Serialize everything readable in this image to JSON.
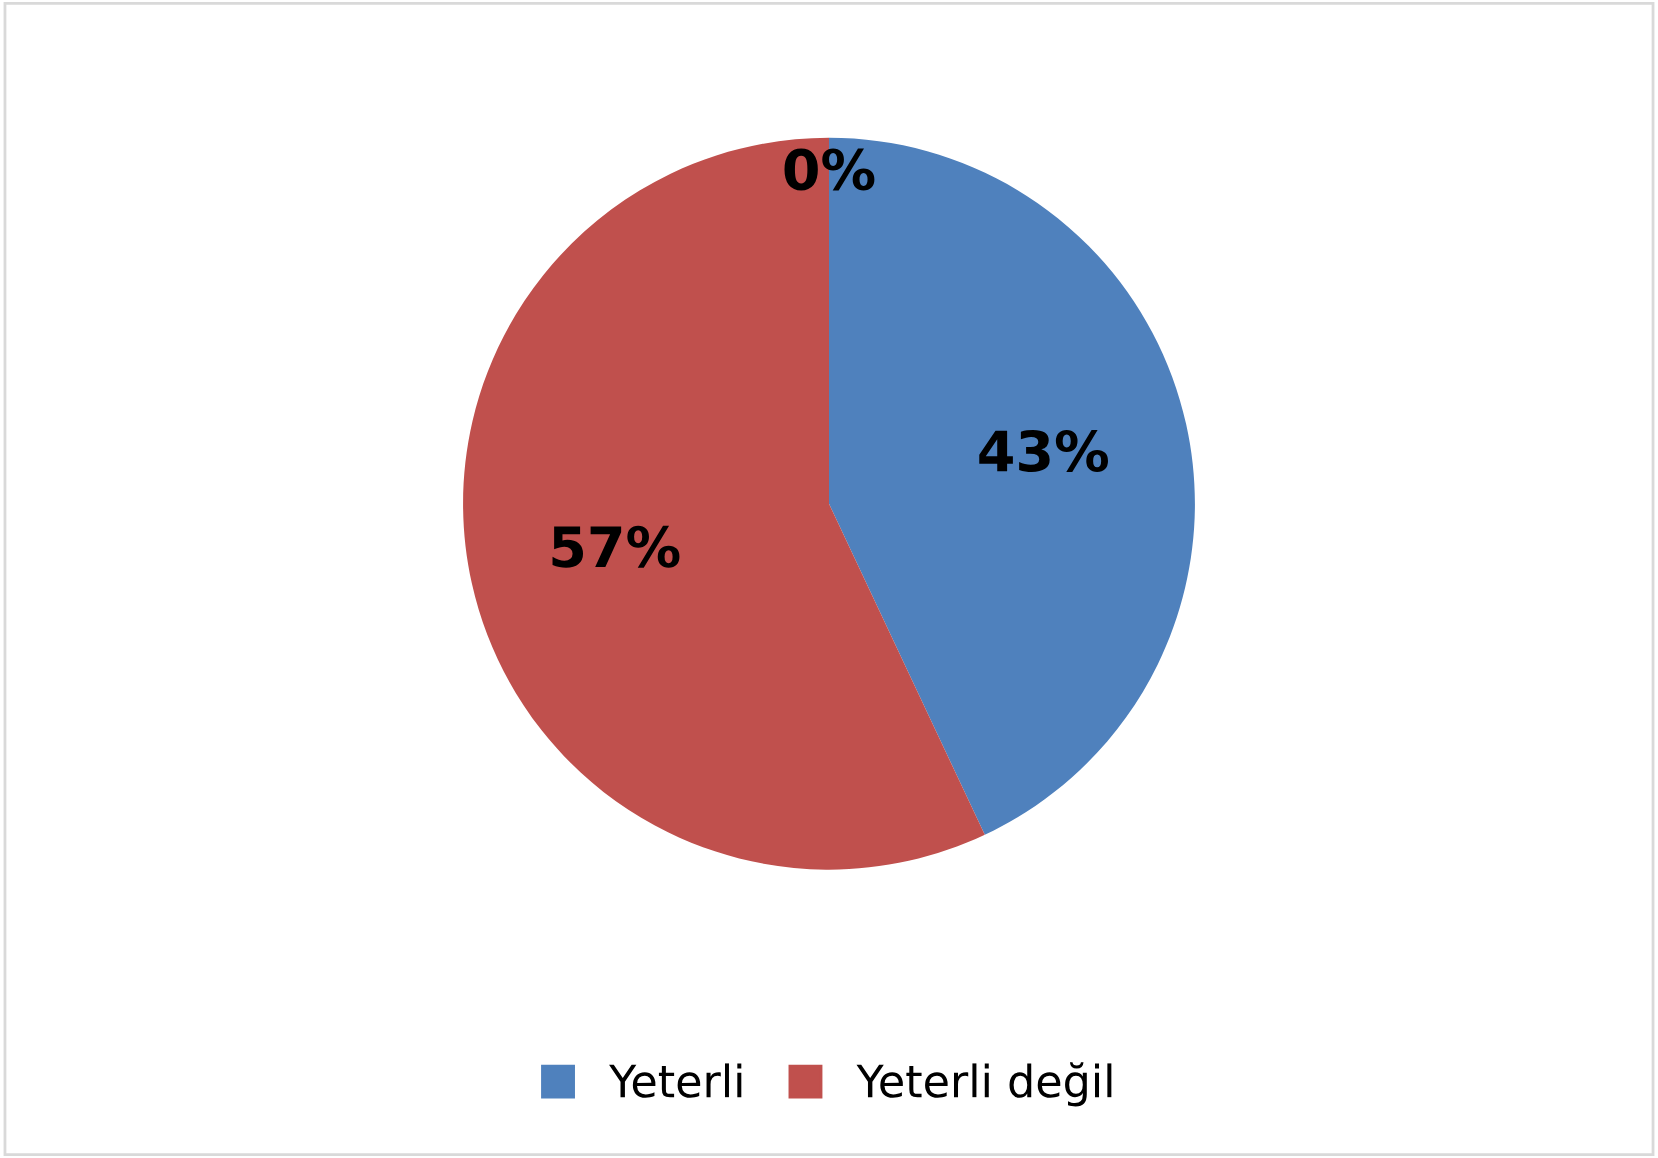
{
  "chart_data": {
    "type": "pie",
    "categories": [
      "Yeterli",
      "Yeterli değil",
      null
    ],
    "values": [
      43,
      57,
      0
    ],
    "colors": [
      "#4f81bd",
      "#c0504d",
      "#9bbb59"
    ],
    "value_labels": [
      "43%",
      "57%",
      "0%"
    ],
    "legend": "bottom"
  }
}
